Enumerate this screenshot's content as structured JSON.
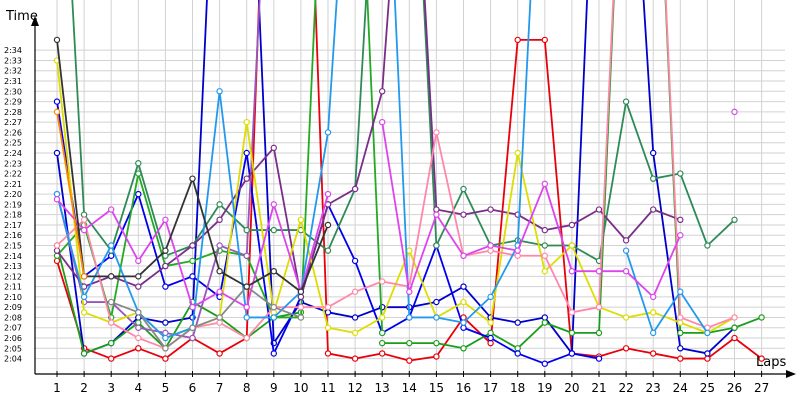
{
  "chart_data": {
    "type": "line",
    "ylabel": "Time",
    "xlabel": "Laps",
    "x": [
      1,
      2,
      3,
      4,
      5,
      6,
      7,
      8,
      9,
      10,
      11,
      12,
      13,
      14,
      15,
      16,
      17,
      18,
      19,
      20,
      21,
      22,
      23,
      24,
      25,
      26,
      27
    ],
    "y_ticks": [
      "2:04",
      "2:05",
      "2:06",
      "2:07",
      "2:08",
      "2:09",
      "2:10",
      "2:11",
      "2:12",
      "2:13",
      "2:14",
      "2:15",
      "2:16",
      "2:17",
      "2:18",
      "2:19",
      "2:20",
      "2:21",
      "2:22",
      "2:23",
      "2:24",
      "2:25",
      "2:26",
      "2:27",
      "2:28",
      "2:29",
      "2:30",
      "2:31",
      "2:32",
      "2:33",
      "2:34"
    ],
    "ylim_seconds": [
      122.5,
      158
    ],
    "grid": true,
    "marker": "hollow-circle",
    "series": [
      {
        "color": "#e8000b",
        "values": [
          133.5,
          125,
          124,
          125,
          124,
          126,
          124.5,
          126,
          198,
          198,
          124.5,
          124,
          124.5,
          123.8,
          124.2,
          128,
          125.5,
          155,
          155,
          124.5,
          124.2,
          125,
          124.5,
          124,
          124,
          126,
          124
        ]
      },
      {
        "color": "#0000cc",
        "values": [
          144,
          124.5,
          125.5,
          128,
          127.5,
          128,
          186,
          186,
          125.5,
          129.5,
          128.5,
          128,
          129,
          129,
          129.5,
          131,
          128,
          127.5,
          128,
          124.5,
          186,
          186,
          144,
          125,
          124.5,
          127,
          null
        ]
      },
      {
        "color": "#1a9e1a",
        "values": [
          135,
          124.5,
          125.5,
          127.5,
          125,
          129.5,
          128,
          126,
          128,
          128.5,
          null,
          null,
          125.5,
          125.5,
          125.5,
          125,
          126.5,
          125,
          127.5,
          126.5,
          126.5,
          186,
          186,
          126.5,
          126.5,
          127,
          128
        ]
      },
      {
        "color": "#0000ee",
        "values": [
          149,
          132,
          134,
          140,
          131,
          132,
          130,
          144,
          124.5,
          130,
          139,
          133.5,
          126.5,
          128,
          135,
          127,
          126,
          124.5,
          123.5,
          124.5,
          124,
          null,
          null,
          null,
          null,
          null,
          null
        ]
      },
      {
        "color": "#22aa22",
        "values": [
          134,
          137,
          128,
          142,
          133,
          133.5,
          134.5,
          134,
          128,
          128,
          186,
          186,
          126.5,
          null,
          null,
          null,
          null,
          null,
          null,
          null,
          null,
          null,
          null,
          null,
          null,
          null,
          null
        ]
      },
      {
        "color": "#9955bb",
        "values": [
          140,
          129.5,
          129.5,
          127,
          126.5,
          126,
          135,
          134,
          186,
          186,
          null,
          null,
          null,
          null,
          null,
          null,
          null,
          null,
          null,
          null,
          null,
          null,
          null,
          null,
          null,
          null,
          null
        ]
      },
      {
        "color": "#2e8b57",
        "values": [
          186,
          138,
          134.5,
          143,
          134,
          135,
          139,
          136.5,
          136.5,
          136.5,
          134.5,
          140.5,
          186,
          186,
          135,
          140.5,
          135,
          135.5,
          135,
          135,
          133.5,
          149,
          141.5,
          142,
          135,
          137.5,
          null
        ]
      },
      {
        "color": "#7a2e8a",
        "values": [
          134.5,
          131,
          132,
          131,
          133,
          135,
          137.5,
          141.5,
          144.5,
          130,
          139,
          140.5,
          150,
          186,
          138.5,
          138,
          138.5,
          138,
          136.5,
          137,
          138.5,
          135.5,
          138.5,
          137.5,
          null,
          null,
          null
        ]
      },
      {
        "color": "#dddd00",
        "values": [
          153,
          128.5,
          127.5,
          128.5,
          126,
          127,
          128,
          147,
          128.5,
          137.5,
          127,
          126.5,
          128,
          134.5,
          128,
          129.5,
          127.5,
          144,
          132.5,
          135,
          129,
          128,
          128.5,
          127.5,
          126.5,
          128,
          null
        ]
      },
      {
        "color": "#ff88aa",
        "values": [
          135,
          137.5,
          127.5,
          126,
          125,
          127,
          127.5,
          126,
          129,
          129,
          129,
          130.5,
          131.5,
          131,
          146,
          134,
          134.5,
          134,
          134,
          128.5,
          129,
          186,
          186,
          128,
          127,
          128,
          null
        ]
      },
      {
        "color": "#2299ee",
        "values": [
          140,
          130,
          135,
          128.5,
          126,
          127,
          150,
          128,
          128,
          130.5,
          146,
          186,
          186,
          128,
          128,
          127.5,
          130,
          135,
          186,
          186,
          null,
          134.5,
          126.5,
          130.5,
          126.5,
          null,
          null
        ]
      },
      {
        "color": "#dd44ee",
        "values": [
          139.5,
          136.5,
          138.5,
          133.5,
          137.5,
          129,
          130.5,
          129,
          139,
          130.5,
          140,
          null,
          147,
          130.5,
          138,
          134,
          135,
          134.5,
          141,
          132.5,
          132.5,
          132.5,
          130,
          136,
          null,
          148,
          null
        ]
      },
      {
        "color": "#888888",
        "values": [
          null,
          null,
          129.5,
          128.5,
          125,
          127,
          128,
          131,
          129,
          128,
          null,
          null,
          null,
          null,
          null,
          null,
          null,
          null,
          null,
          null,
          null,
          null,
          null,
          null,
          null,
          null,
          null
        ]
      },
      {
        "color": "#333333",
        "values": [
          155,
          132,
          132,
          132,
          134.5,
          141.5,
          132.5,
          131,
          132.5,
          130.5,
          137,
          null,
          null,
          null,
          null,
          null,
          null,
          null,
          null,
          null,
          null,
          null,
          null,
          null,
          null,
          null,
          null
        ]
      },
      {
        "color": "#ff8800",
        "values": [
          148,
          132,
          null,
          null,
          null,
          null,
          null,
          null,
          null,
          null,
          null,
          null,
          null,
          null,
          null,
          null,
          null,
          null,
          null,
          null,
          null,
          null,
          null,
          null,
          null,
          null,
          null
        ]
      }
    ]
  }
}
